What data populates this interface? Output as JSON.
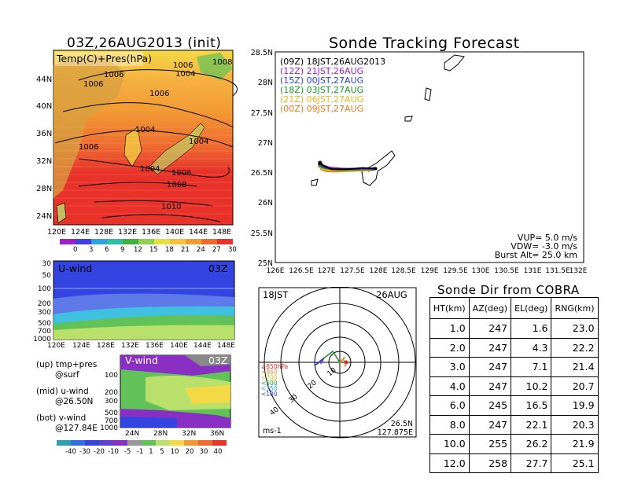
{
  "colors": {
    "red": "#e8322a",
    "orange": "#f29a34",
    "yellow": "#f5d845",
    "lgreen": "#b9e06a",
    "green": "#61c25a",
    "blue": "#3344e0",
    "purple": "#8a2fc4",
    "gray": "#888888"
  },
  "map_panel": {
    "title": "03Z,26AUG2013 (init)",
    "label": "Temp(C)+Pres(hPa)",
    "lat_labels": [
      "44N",
      "40N",
      "36N",
      "32N",
      "28N",
      "24N"
    ],
    "lon_labels": [
      "120E",
      "124E",
      "128E",
      "132E",
      "136E",
      "140E",
      "144E",
      "148E"
    ],
    "contour_labels": [
      "1006",
      "1006",
      "1004",
      "1006",
      "1008",
      "1006",
      "1004",
      "1004",
      "1006",
      "1004",
      "1006",
      "1008",
      "1010"
    ],
    "colorbar_labels": [
      "0",
      "3",
      "6",
      "9",
      "12",
      "15",
      "18",
      "21",
      "24",
      "27",
      "30"
    ]
  },
  "u_panel": {
    "label": "U-wind",
    "time": "03Z",
    "y_labels": [
      "30",
      "50",
      "100",
      "200",
      "300",
      "500",
      "700",
      "1000"
    ],
    "x_labels": [
      "120E",
      "124E",
      "128E",
      "132E",
      "136E",
      "140E",
      "144E",
      "148E"
    ]
  },
  "v_panel": {
    "label": "V-wind",
    "time": "03Z",
    "y_labels": [
      "100",
      "200",
      "300",
      "500",
      "700",
      "1000"
    ],
    "x_labels": [
      "24N",
      "28N",
      "32N",
      "36N"
    ]
  },
  "notes": {
    "l1": "(up) tmp+pres",
    "l2": "@surf",
    "l3": "(mid) u-wind",
    "l4": "@26.50N",
    "l5": "(bot) v-wind",
    "l6": "@127.84E"
  },
  "wind_colorbar_labels": [
    "-40",
    "-30",
    "-20",
    "-10",
    "-5",
    "-1",
    "1",
    "5",
    "10",
    "20",
    "30",
    "40"
  ],
  "track_panel": {
    "title": "Sonde Tracking Forecast",
    "legend": [
      {
        "text": "(09Z) 18JST,26AUG2013",
        "color": "#000000"
      },
      {
        "text": "(12Z) 21JST,26AUG",
        "color": "#a020c8"
      },
      {
        "text": "(15Z) 00JST,27AUG",
        "color": "#2a3ee0"
      },
      {
        "text": "(18Z) 03JST,27AUG",
        "color": "#1a9a2a"
      },
      {
        "text": "(21Z) 06JST,27AUG",
        "color": "#e8b820"
      },
      {
        "text": "(00Z) 09JST,27AUG",
        "color": "#f07820"
      }
    ],
    "lat_labels": [
      "28.5N",
      "28N",
      "27.5N",
      "27N",
      "26.5N",
      "26N",
      "25.5N",
      "25N"
    ],
    "lon_labels": [
      "126E",
      "126.5E",
      "127E",
      "127.5E",
      "128E",
      "128.5E",
      "129E",
      "129.5E",
      "130E",
      "130.5E",
      "131E",
      "131.5E",
      "132E"
    ],
    "vup": "VUP= 5.0 m/s",
    "vdw": "VDW= -3.0 m/s",
    "burst": "Burst Alt= 25.0 km"
  },
  "chart_data": {
    "type": "line",
    "title": "Sonde Tracking Forecast",
    "xlim": [
      126,
      132
    ],
    "ylim": [
      25,
      28.5
    ],
    "series": [
      {
        "name": "(09Z) 18JST,26AUG2013",
        "x": [
          126.87,
          126.95,
          127.1,
          127.4,
          127.7,
          127.95
        ],
        "y": [
          26.65,
          26.6,
          26.55,
          26.55,
          26.57,
          26.56
        ]
      },
      {
        "name": "(12Z) 21JST,26AUG",
        "x": [
          126.87,
          126.93,
          127.05,
          127.3,
          127.6,
          127.92
        ],
        "y": [
          26.66,
          26.62,
          26.58,
          26.56,
          26.56,
          26.56
        ]
      },
      {
        "name": "(15Z) 00JST,27AUG",
        "x": [
          126.87,
          126.92,
          127.0,
          127.25,
          127.55,
          127.9
        ],
        "y": [
          26.64,
          26.6,
          26.57,
          26.55,
          26.55,
          26.55
        ]
      },
      {
        "name": "(18Z) 03JST,27AUG",
        "x": [
          126.87,
          126.9,
          127.0,
          127.2,
          127.5,
          127.88
        ],
        "y": [
          26.62,
          26.58,
          26.56,
          26.54,
          26.54,
          26.55
        ]
      },
      {
        "name": "(21Z) 06JST,27AUG",
        "x": [
          126.87,
          126.9,
          126.98,
          127.2,
          127.5,
          127.85
        ],
        "y": [
          26.61,
          26.56,
          26.54,
          26.53,
          26.53,
          26.54
        ]
      },
      {
        "name": "(00Z) 09JST,27AUG",
        "x": [
          126.87,
          126.89,
          126.97,
          127.15,
          127.45,
          127.82
        ],
        "y": [
          26.6,
          26.55,
          26.52,
          26.51,
          26.52,
          26.53
        ]
      }
    ]
  },
  "polar_panel": {
    "time": "18JST",
    "date": "26AUG",
    "legend": [
      {
        "text": "≥850hPa",
        "color": "#e02a2a"
      },
      {
        "text": "<850",
        "color": "#f09030"
      },
      {
        "text": "<700",
        "color": "#d8c020"
      },
      {
        "text": "<500",
        "color": "#1a9a2a"
      },
      {
        "text": "<250",
        "color": "#2a9ae0"
      },
      {
        "text": "<100",
        "color": "#2a3ee0"
      }
    ],
    "ring_labels": [
      "10",
      "20",
      "30",
      "40"
    ],
    "unit": "ms-1",
    "loc1": "26.5N",
    "loc2": "127.875E"
  },
  "dir_table": {
    "title": "Sonde Dir from COBRA",
    "headers": [
      "HT(km)",
      "AZ(deg)",
      "EL(deg)",
      "RNG(km)"
    ],
    "rows": [
      [
        "1.0",
        "247",
        "1.6",
        "23.0"
      ],
      [
        "2.0",
        "247",
        "4.3",
        "22.2"
      ],
      [
        "3.0",
        "247",
        "7.1",
        "21.4"
      ],
      [
        "4.0",
        "247",
        "10.2",
        "20.7"
      ],
      [
        "6.0",
        "245",
        "16.5",
        "19.9"
      ],
      [
        "8.0",
        "247",
        "22.1",
        "20.3"
      ],
      [
        "10.0",
        "255",
        "26.2",
        "21.9"
      ],
      [
        "12.0",
        "258",
        "27.7",
        "25.1"
      ]
    ]
  }
}
